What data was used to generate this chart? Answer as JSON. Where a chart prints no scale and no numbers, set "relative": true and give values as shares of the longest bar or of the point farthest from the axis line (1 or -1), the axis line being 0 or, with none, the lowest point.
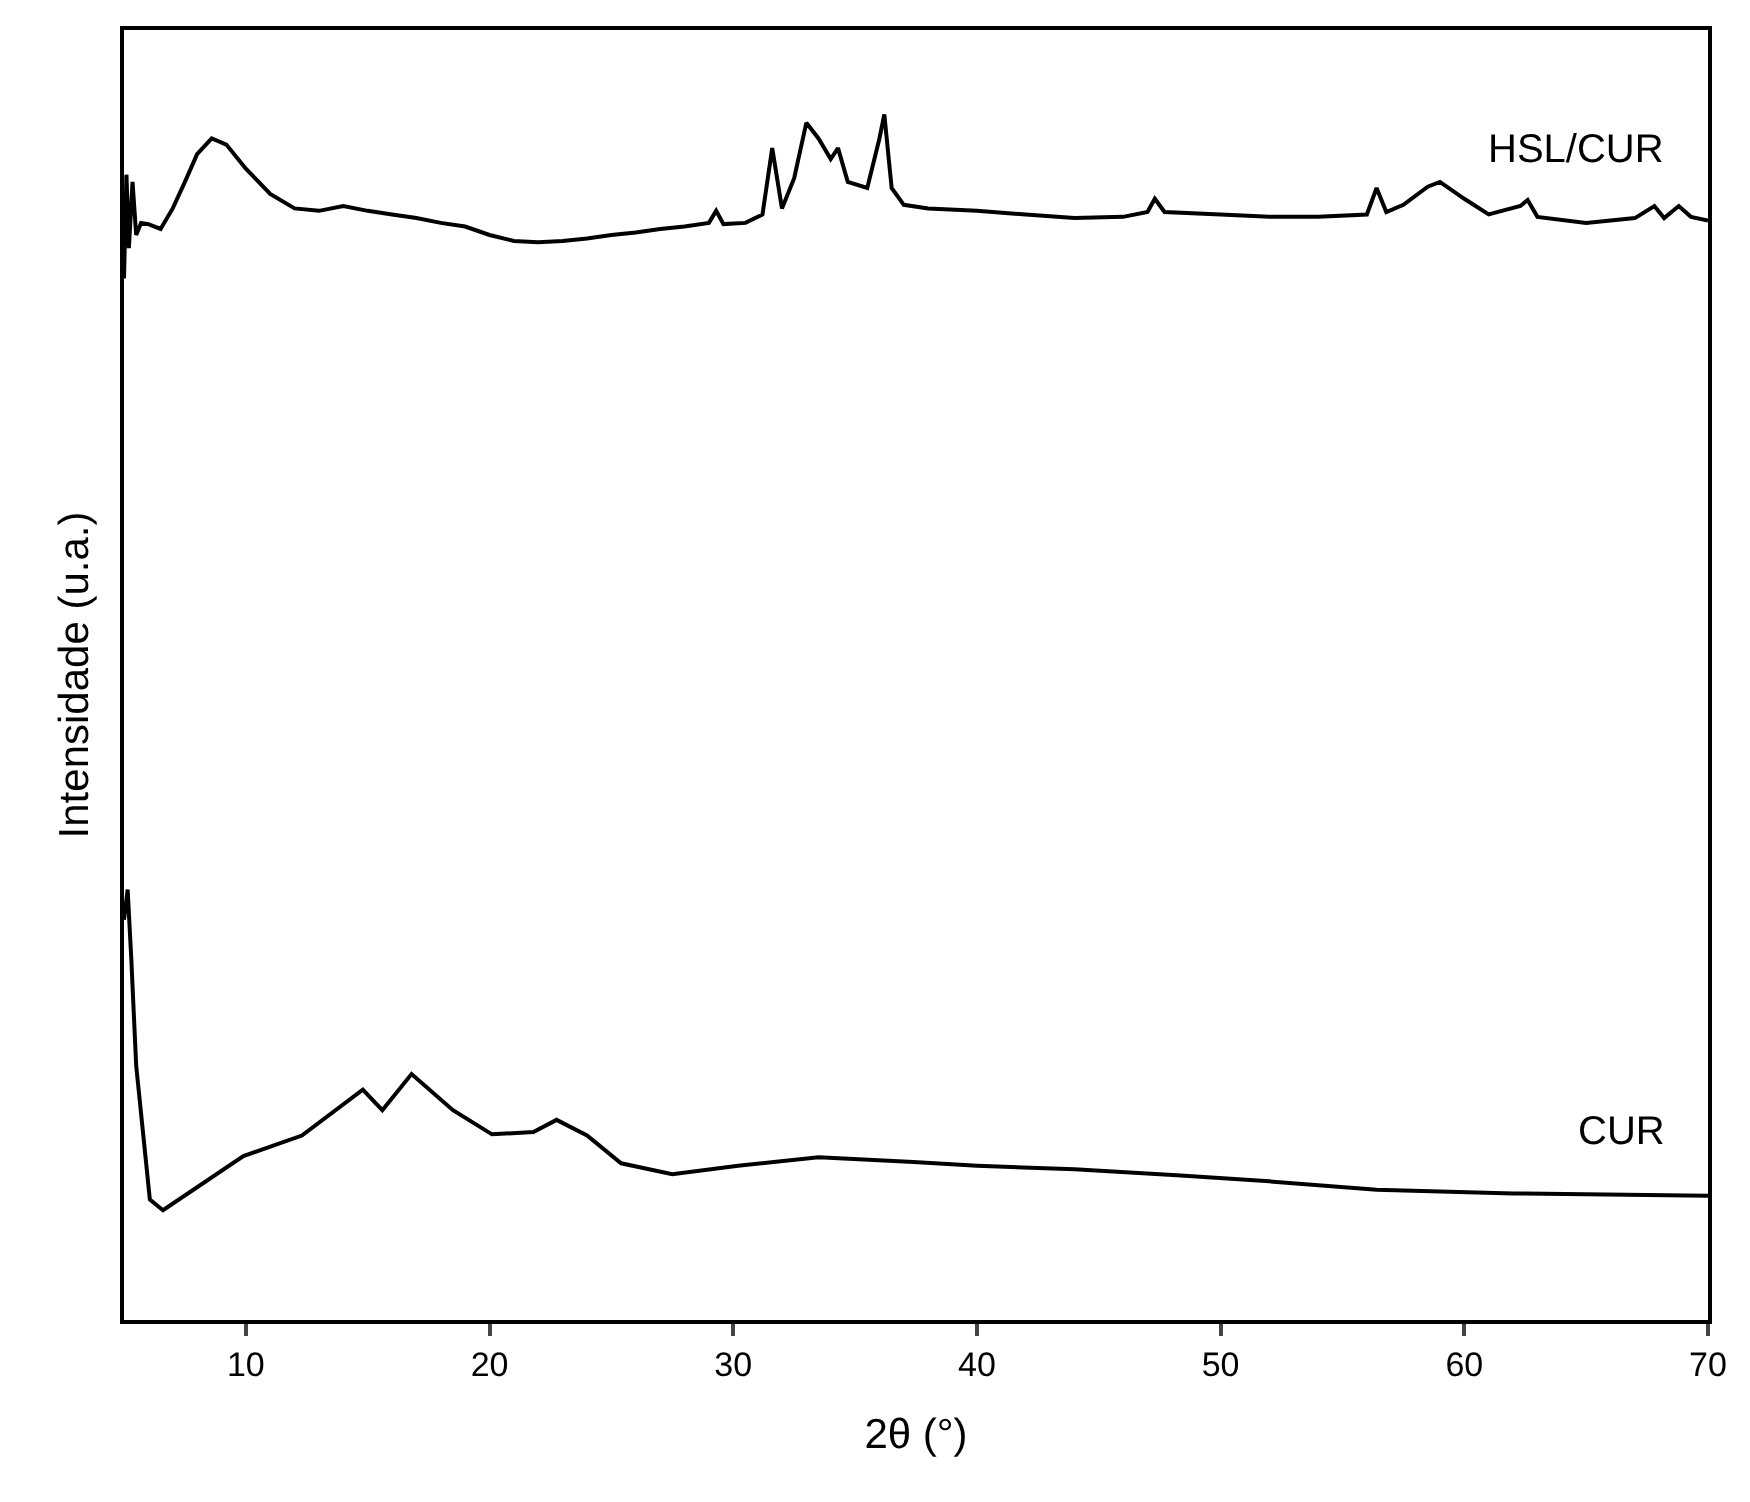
{
  "chart_data": {
    "type": "line",
    "xlabel": "2θ (°)",
    "ylabel": "Intensidade (u.a.)",
    "relative": true,
    "xlim": [
      5,
      70
    ],
    "xticks": [
      10,
      20,
      30,
      40,
      50,
      60,
      70
    ],
    "grid": false,
    "legend": false,
    "marker": "none",
    "line_style": "solid",
    "series": [
      {
        "name": "HSL/CUR",
        "color": "#000000",
        "x": [
          5.0,
          5.1,
          5.2,
          5.35,
          5.5,
          5.7,
          6.0,
          6.5,
          7.0,
          7.5,
          8.0,
          8.6,
          9.2,
          10,
          11,
          12,
          13,
          14,
          15,
          16,
          17,
          18,
          19,
          20,
          21,
          22,
          23,
          24,
          25,
          26,
          27,
          28,
          29,
          29.3,
          29.6,
          30.5,
          31.2,
          31.6,
          32.0,
          32.5,
          33.0,
          33.5,
          34.0,
          34.3,
          34.7,
          35.5,
          36.0,
          36.2,
          36.5,
          37,
          38,
          40,
          42,
          44,
          46,
          47.0,
          47.3,
          47.7,
          50,
          52,
          54,
          56,
          56.4,
          56.8,
          57.5,
          58.5,
          59,
          60,
          61,
          62.3,
          62.6,
          63,
          65,
          67,
          67.8,
          68.2,
          68.8,
          69.3,
          70
        ],
        "values": [
          0.864,
          0.95,
          0.889,
          0.944,
          0.9,
          0.91,
          0.909,
          0.905,
          0.922,
          0.944,
          0.967,
          0.98,
          0.975,
          0.955,
          0.934,
          0.922,
          0.92,
          0.924,
          0.92,
          0.917,
          0.914,
          0.91,
          0.907,
          0.9,
          0.895,
          0.894,
          0.895,
          0.897,
          0.9,
          0.902,
          0.905,
          0.907,
          0.91,
          0.92,
          0.909,
          0.91,
          0.917,
          0.972,
          0.922,
          0.947,
          0.993,
          0.98,
          0.963,
          0.972,
          0.944,
          0.939,
          0.98,
          1.0,
          0.939,
          0.925,
          0.922,
          0.92,
          0.917,
          0.914,
          0.915,
          0.919,
          0.93,
          0.919,
          0.917,
          0.915,
          0.915,
          0.917,
          0.939,
          0.919,
          0.925,
          0.94,
          0.944,
          0.93,
          0.917,
          0.924,
          0.929,
          0.915,
          0.91,
          0.914,
          0.924,
          0.914,
          0.924,
          0.915,
          0.912
        ]
      },
      {
        "name": "CUR",
        "color": "#000000",
        "x": [
          5.0,
          5.15,
          5.3,
          5.5,
          6.06,
          6.6,
          9.9,
          12.3,
          14.8,
          15.6,
          16.8,
          18.5,
          20.1,
          21.8,
          22.75,
          24.0,
          25.4,
          27.5,
          30.2,
          33.5,
          37.4,
          40,
          44,
          48.2,
          52,
          56.4,
          62,
          70
        ],
        "values": [
          0.332,
          0.357,
          0.299,
          0.211,
          0.1,
          0.091,
          0.136,
          0.153,
          0.191,
          0.174,
          0.204,
          0.174,
          0.154,
          0.156,
          0.166,
          0.153,
          0.13,
          0.121,
          0.128,
          0.135,
          0.131,
          0.128,
          0.125,
          0.12,
          0.115,
          0.108,
          0.105,
          0.103
        ]
      }
    ]
  }
}
